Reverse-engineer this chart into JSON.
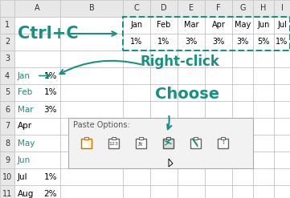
{
  "teal": "#1a9080",
  "orange": "#c87010",
  "figsize": [
    3.61,
    2.47
  ],
  "dpi": 100,
  "months_row1": [
    "Jan",
    "Feb",
    "Mar",
    "Apr",
    "May",
    "Jun",
    "Jul"
  ],
  "pct_row2": [
    "1%",
    "1%",
    "3%",
    "3%",
    "3%",
    "5%",
    "1%"
  ],
  "left_months": [
    "Jan",
    "Feb",
    "Mar",
    "Apr",
    "May",
    "Jun",
    "Jul",
    "Aug"
  ],
  "left_pct": [
    "1%",
    "1%",
    "3%",
    "",
    "",
    "",
    "1%",
    "2%"
  ],
  "ctrl_c_text": "Ctrl+C",
  "right_click_text": "Right-click",
  "choose_text": "Choose",
  "paste_options_text": "Paste Options:",
  "col_header_bg": "#e8e8e8",
  "grid_color": "#c0c0c0"
}
